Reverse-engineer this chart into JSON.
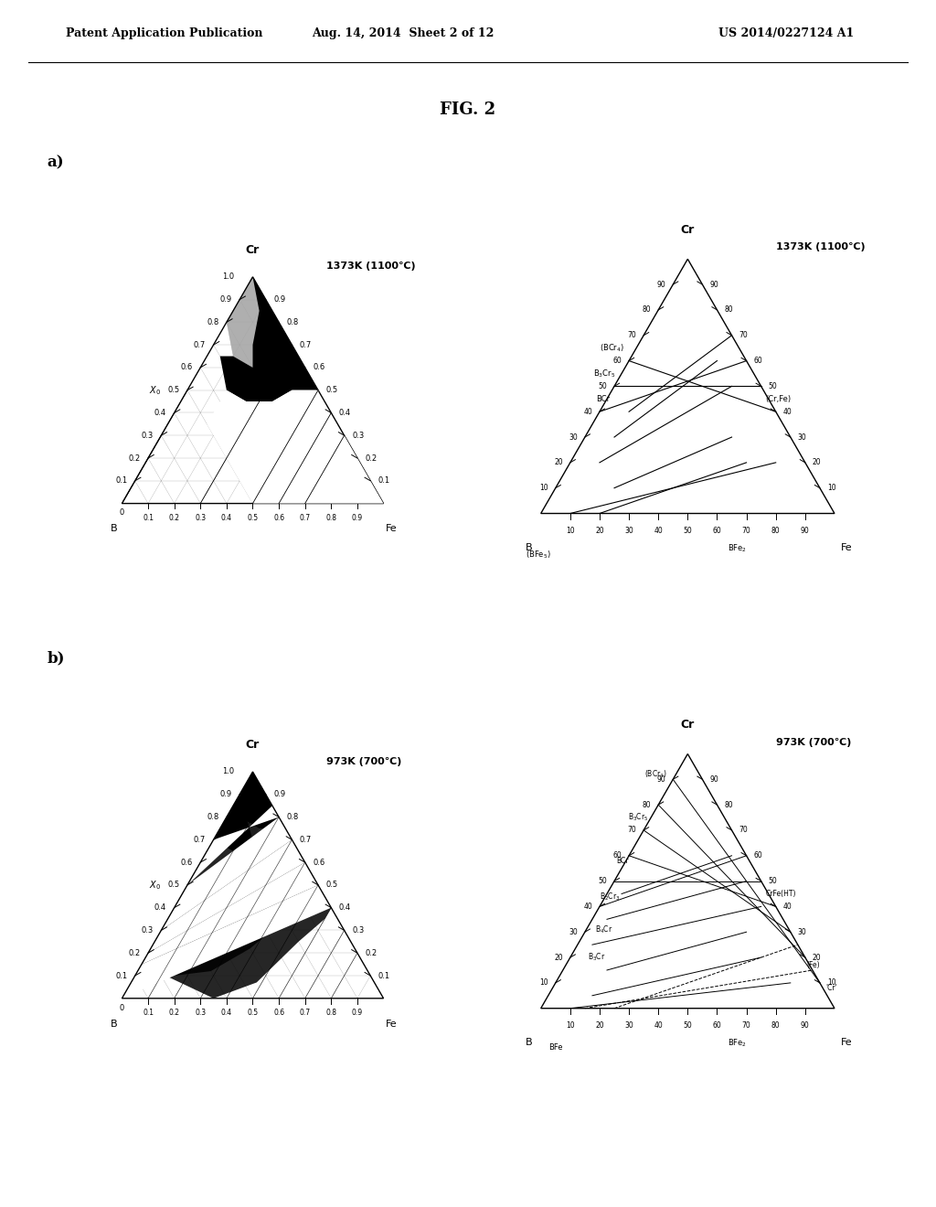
{
  "header_left": "Patent Application Publication",
  "header_mid": "Aug. 14, 2014  Sheet 2 of 12",
  "header_right": "US 2014/0227124 A1",
  "fig_title": "FIG. 2",
  "label_a": "a)",
  "label_b": "b)",
  "title_a_left": "1373K (1100℃)",
  "title_b_left": "973K (700℃)",
  "title_a_right": "1373K (1100℃)",
  "title_b_right": "973K (700℃)",
  "background_color": "#ffffff",
  "page_width": 10.24,
  "page_height": 13.2
}
